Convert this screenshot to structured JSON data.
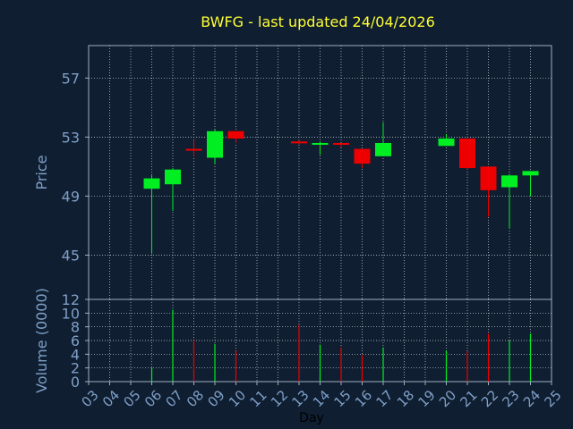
{
  "colors": {
    "background": "#0f1e30",
    "grid": "#d0d8e0",
    "axis": "#9fb0c4",
    "label": "#7f9fc8",
    "title": "#ffff33",
    "up": "#00ee22",
    "down": "#ee0000"
  },
  "chart_data": {
    "type": "candlestick",
    "title": "BWFG - last updated 24/04/2026",
    "xlabel": "Day",
    "x_ticks": [
      "03",
      "04",
      "05",
      "06",
      "07",
      "08",
      "09",
      "10",
      "11",
      "12",
      "13",
      "14",
      "15",
      "16",
      "17",
      "18",
      "19",
      "20",
      "21",
      "22",
      "23",
      "24",
      "25"
    ],
    "grid": true,
    "price_panel": {
      "ylabel": "Price",
      "yticks": [
        45,
        49,
        53,
        57
      ],
      "ylim": [
        42,
        59.2
      ],
      "candles": [
        {
          "day": "06",
          "open": 49.5,
          "high": 50.4,
          "low": 45.1,
          "close": 50.2
        },
        {
          "day": "07",
          "open": 49.8,
          "high": 50.9,
          "low": 48.0,
          "close": 50.8
        },
        {
          "day": "08",
          "open": 52.2,
          "high": 52.8,
          "low": 51.7,
          "close": 52.1
        },
        {
          "day": "09",
          "open": 51.6,
          "high": 53.5,
          "low": 51.2,
          "close": 53.4
        },
        {
          "day": "10",
          "open": 53.4,
          "high": 53.4,
          "low": 52.6,
          "close": 52.9
        },
        {
          "day": "13",
          "open": 52.7,
          "high": 52.8,
          "low": 52.5,
          "close": 52.6
        },
        {
          "day": "14",
          "open": 52.5,
          "high": 52.7,
          "low": 51.8,
          "close": 52.6
        },
        {
          "day": "15",
          "open": 52.6,
          "high": 52.6,
          "low": 52.3,
          "close": 52.5
        },
        {
          "day": "16",
          "open": 52.2,
          "high": 52.2,
          "low": 50.9,
          "close": 51.2
        },
        {
          "day": "17",
          "open": 51.7,
          "high": 54.0,
          "low": 51.7,
          "close": 52.6
        },
        {
          "day": "20",
          "open": 52.4,
          "high": 53.2,
          "low": 52.4,
          "close": 52.9
        },
        {
          "day": "21",
          "open": 52.9,
          "high": 52.9,
          "low": 50.8,
          "close": 50.9
        },
        {
          "day": "22",
          "open": 51.0,
          "high": 51.0,
          "low": 47.6,
          "close": 49.4
        },
        {
          "day": "23",
          "open": 49.6,
          "high": 50.5,
          "low": 46.8,
          "close": 50.4
        },
        {
          "day": "24",
          "open": 50.4,
          "high": 50.7,
          "low": 49.0,
          "close": 50.7
        }
      ]
    },
    "volume_panel": {
      "ylabel": "Volume (0000)",
      "yticks": [
        0,
        2,
        4,
        6,
        8,
        10,
        12
      ],
      "ylim": [
        0,
        12
      ],
      "bars": [
        {
          "day": "06",
          "value": 2.0,
          "direction": "up"
        },
        {
          "day": "07",
          "value": 10.5,
          "direction": "up"
        },
        {
          "day": "08",
          "value": 6.0,
          "direction": "down"
        },
        {
          "day": "09",
          "value": 5.5,
          "direction": "up"
        },
        {
          "day": "10",
          "value": 4.5,
          "direction": "down"
        },
        {
          "day": "13",
          "value": 8.3,
          "direction": "down"
        },
        {
          "day": "14",
          "value": 5.4,
          "direction": "up"
        },
        {
          "day": "15",
          "value": 5.0,
          "direction": "down"
        },
        {
          "day": "16",
          "value": 3.9,
          "direction": "down"
        },
        {
          "day": "17",
          "value": 5.0,
          "direction": "up"
        },
        {
          "day": "20",
          "value": 4.5,
          "direction": "up"
        },
        {
          "day": "21",
          "value": 4.4,
          "direction": "down"
        },
        {
          "day": "22",
          "value": 7.0,
          "direction": "down"
        },
        {
          "day": "23",
          "value": 6.0,
          "direction": "up"
        },
        {
          "day": "24",
          "value": 7.0,
          "direction": "up"
        }
      ]
    }
  }
}
